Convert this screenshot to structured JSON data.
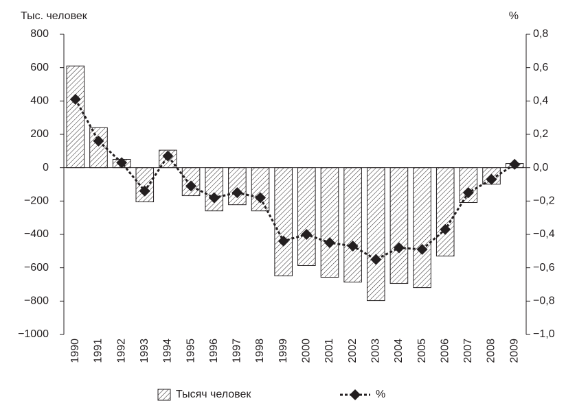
{
  "chart_data": {
    "type": "bar",
    "y_label": "Тыс. человек",
    "y2_label": "%",
    "categories": [
      "1990",
      "1991",
      "1992",
      "1993",
      "1994",
      "1995",
      "1996",
      "1997",
      "1998",
      "1999",
      "2000",
      "2001",
      "2002",
      "2003",
      "2004",
      "2005",
      "2006",
      "2007",
      "2008",
      "2009"
    ],
    "series": [
      {
        "name": "Тысяч человек",
        "type": "bar",
        "color": "#231f20",
        "values": [
          610,
          240,
          50,
          -205,
          105,
          -168,
          -259,
          -222,
          -259,
          -649,
          -587,
          -657,
          -686,
          -797,
          -694,
          -719,
          -530,
          -209,
          -99,
          25
        ]
      },
      {
        "name": "%",
        "type": "line",
        "axis": "y2",
        "color": "#231f20",
        "values": [
          0.41,
          0.16,
          0.03,
          -0.14,
          0.07,
          -0.11,
          -0.18,
          -0.15,
          -0.18,
          -0.44,
          -0.4,
          -0.45,
          -0.47,
          -0.55,
          -0.48,
          -0.49,
          -0.37,
          -0.15,
          -0.07,
          0.02
        ]
      }
    ],
    "ylim": [
      -1000,
      800
    ],
    "yticks": [
      {
        "value": -1000,
        "label": "−1000"
      },
      {
        "value": -800,
        "label": "−800"
      },
      {
        "value": -600,
        "label": "−600"
      },
      {
        "value": -400,
        "label": "−400"
      },
      {
        "value": -200,
        "label": "−200"
      },
      0,
      200,
      400,
      600,
      800
    ],
    "y2lim": [
      -1.0,
      0.8
    ],
    "y2ticks": [
      {
        "value": -1.0,
        "label": "−1,0"
      },
      {
        "value": -0.8,
        "label": "−0,8"
      },
      {
        "value": -0.6,
        "label": "−0,6"
      },
      {
        "value": -0.4,
        "label": "−0,4"
      },
      {
        "value": -0.2,
        "label": "−0,2"
      },
      {
        "value": 0,
        "label": "0,0"
      },
      {
        "value": 0.2,
        "label": "0,2"
      },
      {
        "value": 0.4,
        "label": "0,4"
      },
      {
        "value": 0.6,
        "label": "0,6"
      },
      {
        "value": 0.8,
        "label": "0,8"
      }
    ],
    "legend": "bottom",
    "grid": false
  }
}
